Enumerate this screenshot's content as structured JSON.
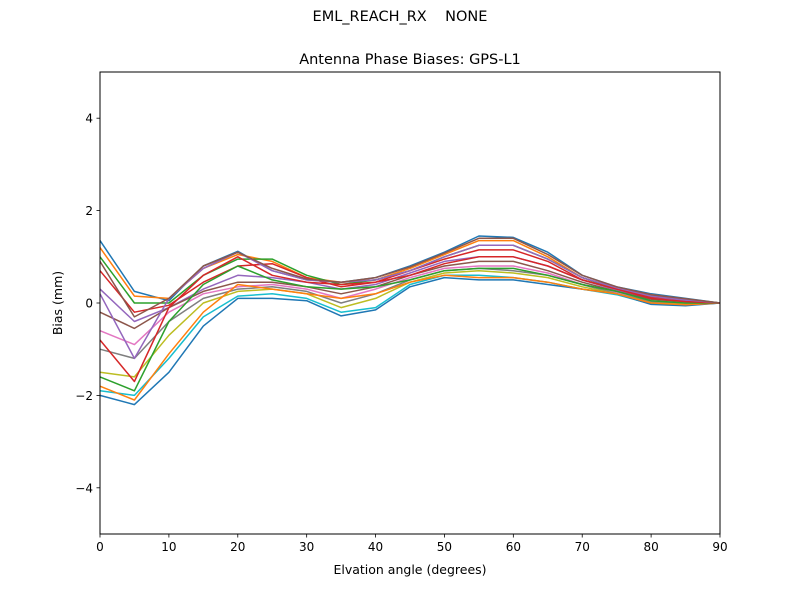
{
  "figure": {
    "suptitle": "EML_REACH_RX    NONE"
  },
  "chart_data": {
    "type": "line",
    "title": "Antenna Phase Biases: GPS-L1",
    "xlabel": "Elvation angle (degrees)",
    "ylabel": "Bias (mm)",
    "xlim": [
      0,
      90
    ],
    "ylim": [
      -5,
      5
    ],
    "xticks": [
      0,
      10,
      20,
      30,
      40,
      50,
      60,
      70,
      80,
      90
    ],
    "yticks": [
      -4,
      -2,
      0,
      2,
      4
    ],
    "grid": false,
    "legend": "none",
    "x": [
      0,
      5,
      10,
      15,
      20,
      25,
      30,
      35,
      40,
      45,
      50,
      55,
      60,
      65,
      70,
      75,
      80,
      85,
      90
    ],
    "colors": [
      "#1f77b4",
      "#ff7f0e",
      "#2ca02c",
      "#d62728",
      "#9467bd",
      "#8c564b",
      "#e377c2",
      "#7f7f7f",
      "#bcbd22",
      "#17becf"
    ],
    "series": [
      {
        "values": [
          1.35,
          0.25,
          0.05,
          0.8,
          1.12,
          0.7,
          0.5,
          0.45,
          0.55,
          0.8,
          1.1,
          1.45,
          1.42,
          1.1,
          0.6,
          0.35,
          0.2,
          0.1,
          0
        ]
      },
      {
        "values": [
          1.2,
          0.15,
          0.1,
          0.75,
          1.05,
          0.9,
          0.55,
          0.45,
          0.5,
          0.75,
          1.05,
          1.35,
          1.35,
          1.0,
          0.55,
          0.33,
          0.18,
          0.08,
          0
        ]
      },
      {
        "values": [
          1.0,
          0.0,
          0.0,
          0.6,
          0.95,
          0.95,
          0.6,
          0.4,
          0.5,
          0.7,
          1.0,
          1.25,
          1.25,
          0.95,
          0.55,
          0.3,
          0.15,
          0.08,
          0
        ]
      },
      {
        "values": [
          0.7,
          -0.2,
          -0.05,
          0.45,
          0.8,
          0.85,
          0.55,
          0.35,
          0.45,
          0.7,
          0.95,
          1.15,
          1.15,
          0.9,
          0.5,
          0.3,
          0.12,
          0.05,
          0
        ]
      },
      {
        "values": [
          0.3,
          -0.4,
          -0.1,
          0.3,
          0.6,
          0.55,
          0.45,
          0.3,
          0.4,
          0.65,
          0.9,
          1.0,
          1.0,
          0.8,
          0.5,
          0.28,
          0.1,
          0.05,
          0
        ]
      },
      {
        "values": [
          -0.2,
          -0.55,
          -0.1,
          0.25,
          0.45,
          0.45,
          0.35,
          0.2,
          0.35,
          0.6,
          0.8,
          0.9,
          0.9,
          0.7,
          0.45,
          0.25,
          0.08,
          0.02,
          0
        ]
      },
      {
        "values": [
          -0.6,
          -0.9,
          -0.2,
          0.2,
          0.35,
          0.4,
          0.3,
          0.1,
          0.3,
          0.55,
          0.75,
          0.8,
          0.8,
          0.65,
          0.4,
          0.22,
          0.05,
          0,
          0
        ]
      },
      {
        "values": [
          -1.0,
          -1.2,
          -0.4,
          0.1,
          0.3,
          0.35,
          0.25,
          0.0,
          0.2,
          0.5,
          0.7,
          0.75,
          0.7,
          0.6,
          0.4,
          0.2,
          0.03,
          -0.02,
          0
        ]
      },
      {
        "values": [
          -1.5,
          -1.6,
          -0.7,
          0.0,
          0.25,
          0.3,
          0.2,
          -0.1,
          0.1,
          0.45,
          0.65,
          0.7,
          0.65,
          0.55,
          0.35,
          0.2,
          0.0,
          -0.03,
          0
        ]
      },
      {
        "values": [
          -1.9,
          -2.0,
          -1.2,
          -0.3,
          0.15,
          0.2,
          0.1,
          -0.2,
          -0.1,
          0.4,
          0.6,
          0.6,
          0.55,
          0.45,
          0.3,
          0.18,
          -0.02,
          -0.05,
          0
        ]
      },
      {
        "values": [
          -2.0,
          -2.2,
          -1.5,
          -0.5,
          0.1,
          0.1,
          0.05,
          -0.28,
          -0.15,
          0.35,
          0.55,
          0.5,
          0.5,
          0.4,
          0.3,
          0.2,
          -0.03,
          -0.06,
          0
        ]
      },
      {
        "values": [
          -1.8,
          -2.1,
          -1.1,
          -0.2,
          0.4,
          0.3,
          0.2,
          0.1,
          0.2,
          0.45,
          0.6,
          0.55,
          0.55,
          0.45,
          0.3,
          0.2,
          0.0,
          -0.04,
          0
        ]
      },
      {
        "values": [
          -1.6,
          -1.9,
          -0.4,
          0.4,
          0.8,
          0.5,
          0.35,
          0.3,
          0.35,
          0.5,
          0.7,
          0.75,
          0.75,
          0.6,
          0.4,
          0.25,
          0.05,
          0,
          0
        ]
      },
      {
        "values": [
          -0.8,
          -1.7,
          -0.1,
          0.6,
          1.0,
          0.6,
          0.45,
          0.4,
          0.45,
          0.6,
          0.85,
          1.0,
          1.0,
          0.8,
          0.5,
          0.3,
          0.1,
          0.03,
          0
        ]
      },
      {
        "values": [
          0.2,
          -1.2,
          0.1,
          0.75,
          1.1,
          0.7,
          0.5,
          0.45,
          0.5,
          0.7,
          1.0,
          1.25,
          1.25,
          0.95,
          0.55,
          0.33,
          0.15,
          0.07,
          0
        ]
      },
      {
        "values": [
          0.9,
          -0.3,
          0.1,
          0.8,
          1.1,
          0.75,
          0.52,
          0.45,
          0.55,
          0.78,
          1.08,
          1.4,
          1.4,
          1.05,
          0.6,
          0.35,
          0.18,
          0.09,
          0
        ]
      }
    ]
  }
}
